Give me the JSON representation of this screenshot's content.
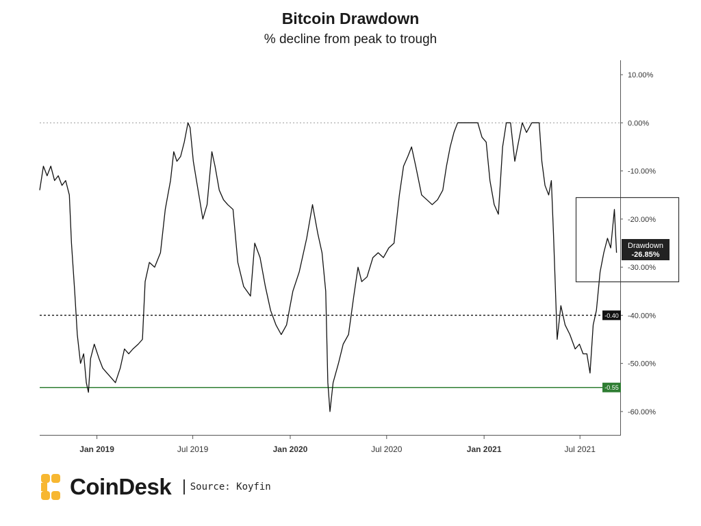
{
  "chart_data": {
    "type": "line",
    "title": "Bitcoin Drawdown",
    "subtitle": "% decline from peak to trough",
    "ylim": [
      -65,
      13
    ],
    "y_ticks": [
      "10.00%",
      "0.00%",
      "-10.00%",
      "-20.00%",
      "-30.00%",
      "-40.00%",
      "-50.00%",
      "-60.00%"
    ],
    "y_tick_values": [
      10,
      0,
      -10,
      -20,
      -30,
      -40,
      -50,
      -60
    ],
    "x_range": [
      "2018-09-15",
      "2021-09-15"
    ],
    "x_ticks": [
      {
        "label": "Jan 2019",
        "date": "2019-01-01",
        "major": true
      },
      {
        "label": "Jul 2019",
        "date": "2019-07-01",
        "major": false
      },
      {
        "label": "Jan 2020",
        "date": "2020-01-01",
        "major": true
      },
      {
        "label": "Jul 2020",
        "date": "2020-07-01",
        "major": false
      },
      {
        "label": "Jan 2021",
        "date": "2021-01-01",
        "major": true
      },
      {
        "label": "Jul 2021",
        "date": "2021-07-01",
        "major": false
      }
    ],
    "reference_lines": [
      {
        "value": 0,
        "style": "dotted",
        "color": "#9a9a9a"
      },
      {
        "value": -40,
        "style": "dashed",
        "color": "#222222",
        "label": "-0.40",
        "label_color": "#111111"
      },
      {
        "value": -55,
        "style": "solid",
        "color": "#2e7d32",
        "label": "-0.55",
        "label_color": "#2e7d32"
      }
    ],
    "annotation": {
      "label": "Drawdown",
      "value": "-26.85%"
    },
    "grid": false,
    "series": [
      {
        "color": "#111111",
        "points": [
          [
            "2018-09-15",
            -14
          ],
          [
            "2018-09-22",
            -9
          ],
          [
            "2018-09-29",
            -11
          ],
          [
            "2018-10-06",
            -9
          ],
          [
            "2018-10-13",
            -12
          ],
          [
            "2018-10-20",
            -11
          ],
          [
            "2018-10-27",
            -13
          ],
          [
            "2018-11-03",
            -12
          ],
          [
            "2018-11-10",
            -15
          ],
          [
            "2018-11-14",
            -25
          ],
          [
            "2018-11-20",
            -35
          ],
          [
            "2018-11-25",
            -44
          ],
          [
            "2018-12-01",
            -50
          ],
          [
            "2018-12-07",
            -48
          ],
          [
            "2018-12-12",
            -54
          ],
          [
            "2018-12-16",
            -56
          ],
          [
            "2018-12-20",
            -49
          ],
          [
            "2018-12-27",
            -46
          ],
          [
            "2019-01-05",
            -49
          ],
          [
            "2019-01-12",
            -51
          ],
          [
            "2019-01-20",
            -52
          ],
          [
            "2019-01-28",
            -53
          ],
          [
            "2019-02-05",
            -54
          ],
          [
            "2019-02-14",
            -51
          ],
          [
            "2019-02-22",
            -47
          ],
          [
            "2019-03-02",
            -48
          ],
          [
            "2019-03-10",
            -47
          ],
          [
            "2019-03-20",
            -46
          ],
          [
            "2019-03-28",
            -45
          ],
          [
            "2019-04-02",
            -33
          ],
          [
            "2019-04-10",
            -29
          ],
          [
            "2019-04-20",
            -30
          ],
          [
            "2019-05-01",
            -27
          ],
          [
            "2019-05-10",
            -18
          ],
          [
            "2019-05-15",
            -15
          ],
          [
            "2019-05-20",
            -12
          ],
          [
            "2019-05-26",
            -6
          ],
          [
            "2019-06-01",
            -8
          ],
          [
            "2019-06-08",
            -7
          ],
          [
            "2019-06-15",
            -4
          ],
          [
            "2019-06-22",
            0
          ],
          [
            "2019-06-26",
            -1
          ],
          [
            "2019-07-02",
            -8
          ],
          [
            "2019-07-08",
            -12
          ],
          [
            "2019-07-14",
            -16
          ],
          [
            "2019-07-20",
            -20
          ],
          [
            "2019-07-28",
            -17
          ],
          [
            "2019-08-06",
            -6
          ],
          [
            "2019-08-12",
            -9
          ],
          [
            "2019-08-20",
            -14
          ],
          [
            "2019-08-28",
            -16
          ],
          [
            "2019-09-05",
            -17
          ],
          [
            "2019-09-15",
            -18
          ],
          [
            "2019-09-24",
            -29
          ],
          [
            "2019-10-05",
            -34
          ],
          [
            "2019-10-18",
            -36
          ],
          [
            "2019-10-26",
            -25
          ],
          [
            "2019-11-05",
            -28
          ],
          [
            "2019-11-15",
            -34
          ],
          [
            "2019-11-25",
            -39
          ],
          [
            "2019-12-05",
            -42
          ],
          [
            "2019-12-15",
            -44
          ],
          [
            "2019-12-25",
            -42
          ],
          [
            "2020-01-06",
            -35
          ],
          [
            "2020-01-18",
            -31
          ],
          [
            "2020-02-01",
            -24
          ],
          [
            "2020-02-12",
            -17
          ],
          [
            "2020-02-22",
            -23
          ],
          [
            "2020-03-01",
            -27
          ],
          [
            "2020-03-08",
            -35
          ],
          [
            "2020-03-12",
            -54
          ],
          [
            "2020-03-16",
            -60
          ],
          [
            "2020-03-22",
            -54
          ],
          [
            "2020-04-01",
            -50
          ],
          [
            "2020-04-10",
            -46
          ],
          [
            "2020-04-20",
            -44
          ],
          [
            "2020-04-30",
            -36
          ],
          [
            "2020-05-08",
            -30
          ],
          [
            "2020-05-15",
            -33
          ],
          [
            "2020-05-25",
            -32
          ],
          [
            "2020-06-05",
            -28
          ],
          [
            "2020-06-15",
            -27
          ],
          [
            "2020-06-25",
            -28
          ],
          [
            "2020-07-05",
            -26
          ],
          [
            "2020-07-15",
            -25
          ],
          [
            "2020-07-25",
            -15
          ],
          [
            "2020-08-02",
            -9
          ],
          [
            "2020-08-10",
            -7
          ],
          [
            "2020-08-17",
            -5
          ],
          [
            "2020-08-25",
            -9
          ],
          [
            "2020-09-05",
            -15
          ],
          [
            "2020-09-15",
            -16
          ],
          [
            "2020-09-25",
            -17
          ],
          [
            "2020-10-05",
            -16
          ],
          [
            "2020-10-15",
            -14
          ],
          [
            "2020-10-22",
            -9
          ],
          [
            "2020-10-29",
            -5
          ],
          [
            "2020-11-05",
            -2
          ],
          [
            "2020-11-12",
            0
          ],
          [
            "2020-11-20",
            0
          ],
          [
            "2020-11-30",
            0
          ],
          [
            "2020-12-10",
            0
          ],
          [
            "2020-12-20",
            0
          ],
          [
            "2020-12-28",
            -3
          ],
          [
            "2021-01-05",
            -4
          ],
          [
            "2021-01-12",
            -12
          ],
          [
            "2021-01-20",
            -17
          ],
          [
            "2021-01-28",
            -19
          ],
          [
            "2021-02-05",
            -5
          ],
          [
            "2021-02-12",
            0
          ],
          [
            "2021-02-20",
            0
          ],
          [
            "2021-02-28",
            -8
          ],
          [
            "2021-03-07",
            -4
          ],
          [
            "2021-03-14",
            0
          ],
          [
            "2021-03-22",
            -2
          ],
          [
            "2021-04-01",
            0
          ],
          [
            "2021-04-10",
            0
          ],
          [
            "2021-04-15",
            0
          ],
          [
            "2021-04-20",
            -8
          ],
          [
            "2021-04-26",
            -13
          ],
          [
            "2021-05-03",
            -15
          ],
          [
            "2021-05-08",
            -12
          ],
          [
            "2021-05-12",
            -23
          ],
          [
            "2021-05-19",
            -45
          ],
          [
            "2021-05-26",
            -38
          ],
          [
            "2021-06-03",
            -42
          ],
          [
            "2021-06-12",
            -44
          ],
          [
            "2021-06-22",
            -47
          ],
          [
            "2021-06-30",
            -46
          ],
          [
            "2021-07-07",
            -48
          ],
          [
            "2021-07-14",
            -48
          ],
          [
            "2021-07-20",
            -52
          ],
          [
            "2021-07-26",
            -42
          ],
          [
            "2021-08-01",
            -39
          ],
          [
            "2021-08-08",
            -31
          ],
          [
            "2021-08-15",
            -27
          ],
          [
            "2021-08-22",
            -24
          ],
          [
            "2021-08-28",
            -26
          ],
          [
            "2021-09-04",
            -18
          ],
          [
            "2021-09-08",
            -27
          ]
        ]
      }
    ]
  },
  "branding": {
    "logo_name": "CoinDesk",
    "source": "Source: Koyfin"
  }
}
